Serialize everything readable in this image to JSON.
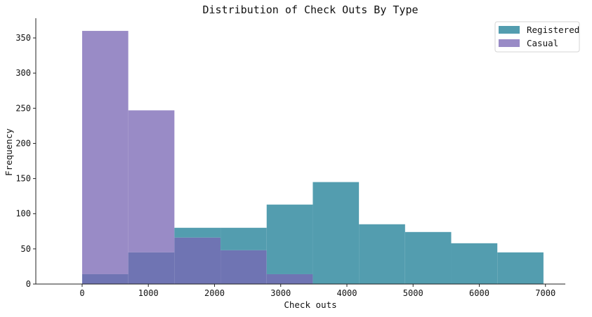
{
  "chart_data": {
    "type": "bar",
    "subtype": "overlapping-histogram",
    "title": "Distribution of Check Outs By Type",
    "xlabel": "Check outs",
    "ylabel": "Frequency",
    "xlim": [
      -700,
      7300
    ],
    "ylim": [
      0,
      378
    ],
    "xticks": [
      0,
      1000,
      2000,
      3000,
      4000,
      5000,
      6000,
      7000
    ],
    "yticks": [
      0,
      50,
      100,
      150,
      200,
      250,
      300,
      350
    ],
    "bin_edges": [
      0,
      697,
      1394,
      2091,
      2788,
      3485,
      4182,
      4879,
      5576,
      6273,
      6970
    ],
    "legend_position": "top-right",
    "spines": "left-bottom",
    "overlap_color": "#6f74b3",
    "series": [
      {
        "name": "Registered",
        "color": "#539daf",
        "alpha": 1,
        "values": [
          14,
          45,
          80,
          80,
          113,
          145,
          85,
          74,
          58,
          45
        ]
      },
      {
        "name": "Casual",
        "color": "#998bc6",
        "alpha": 1,
        "values": [
          360,
          247,
          66,
          48,
          14,
          0,
          0,
          0,
          0,
          0
        ]
      }
    ]
  }
}
